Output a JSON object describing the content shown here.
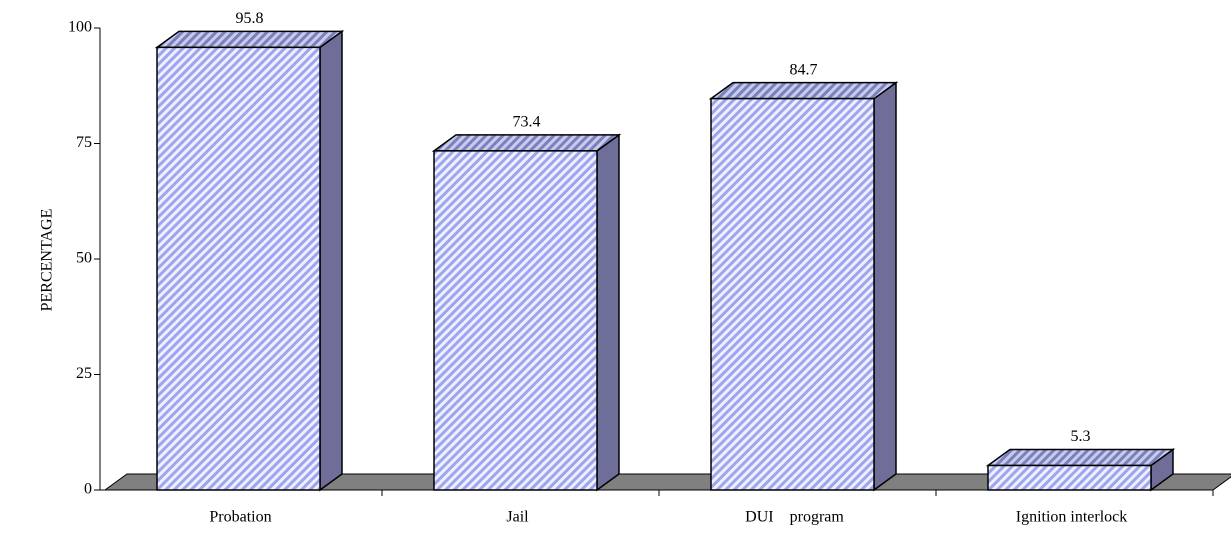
{
  "chart_data": {
    "type": "bar3d",
    "ylabel": "PERCENTAGE",
    "categories": [
      "Probation",
      "Jail",
      "DUI    program",
      "Ignition interlock"
    ],
    "values": [
      95.8,
      73.4,
      84.7,
      5.3
    ],
    "color": "#b4b8f4",
    "ylim": [
      0,
      100
    ],
    "yticks": [
      0,
      25,
      50,
      75,
      100
    ]
  }
}
